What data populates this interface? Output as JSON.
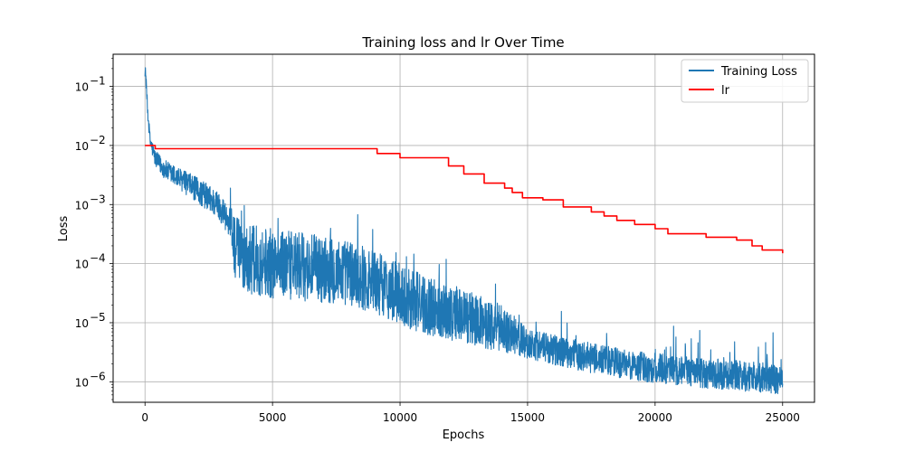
{
  "chart_data": {
    "type": "line",
    "title": "Training loss and lr Over Time",
    "xlabel": "Epochs",
    "ylabel": "Loss",
    "xlim": [
      -1250,
      26250
    ],
    "ylim": [
      4.5e-07,
      0.35
    ],
    "yscale": "log",
    "grid": true,
    "legend_position": "top-right",
    "x_ticks": [
      0,
      5000,
      10000,
      15000,
      20000,
      25000
    ],
    "x_tick_labels": [
      "0",
      "5000",
      "10000",
      "15000",
      "20000",
      "25000"
    ],
    "y_ticks": [
      1e-06,
      1e-05,
      0.0001,
      0.001,
      0.01,
      0.1
    ],
    "y_tick_labels": [
      {
        "base": "10",
        "exp": "−6"
      },
      {
        "base": "10",
        "exp": "−5"
      },
      {
        "base": "10",
        "exp": "−4"
      },
      {
        "base": "10",
        "exp": "−3"
      },
      {
        "base": "10",
        "exp": "−2"
      },
      {
        "base": "10",
        "exp": "−1"
      }
    ],
    "series": [
      {
        "name": "Training Loss",
        "color": "#1f77b4",
        "style": "noisy",
        "trend": {
          "x": [
            0,
            30,
            100,
            200,
            400,
            700,
            1000,
            1500,
            2000,
            2500,
            3000,
            3300,
            3600,
            4000,
            5000,
            6000,
            7000,
            8000,
            9000,
            10000,
            11000,
            12000,
            13000,
            14000,
            15000,
            16000,
            17000,
            18000,
            19000,
            20000,
            21000,
            22000,
            23000,
            24000,
            25000
          ],
          "y": [
            0.19,
            0.15,
            0.04,
            0.012,
            0.006,
            0.0042,
            0.0033,
            0.0025,
            0.0018,
            0.0013,
            0.00085,
            0.0005,
            0.00016,
            0.00012,
            0.0001,
            9e-05,
            8e-05,
            7e-05,
            5e-05,
            3e-05,
            2e-05,
            1.5e-05,
            1.1e-05,
            8e-06,
            4.5e-06,
            3.5e-06,
            2.8e-06,
            2.3e-06,
            1.9e-06,
            1.7e-06,
            1.5e-06,
            1.4e-06,
            1.3e-06,
            1.2e-06,
            1.1e-06
          ]
        },
        "band": {
          "x": [
            0,
            1000,
            3300,
            3600,
            9000,
            12000,
            14000,
            15000,
            25000
          ],
          "y": [
            1.3,
            1.5,
            1.8,
            4.0,
            3.5,
            3.0,
            2.5,
            1.8,
            1.8
          ]
        }
      },
      {
        "name": "lr",
        "color": "#ff0000",
        "style": "step",
        "x": [
          0,
          400,
          8400,
          9100,
          10000,
          11900,
          12500,
          13300,
          14100,
          14400,
          14800,
          15600,
          16400,
          17500,
          18000,
          18500,
          19200,
          20000,
          20500,
          22000,
          23200,
          23800,
          24200,
          25000
        ],
        "y": [
          0.01,
          0.0088,
          0.0088,
          0.0073,
          0.0062,
          0.0045,
          0.0033,
          0.0023,
          0.0019,
          0.0016,
          0.0013,
          0.0012,
          0.00091,
          0.00075,
          0.00064,
          0.00054,
          0.00046,
          0.00039,
          0.00032,
          0.00028,
          0.00025,
          0.0002,
          0.00017,
          0.00015
        ]
      }
    ]
  }
}
